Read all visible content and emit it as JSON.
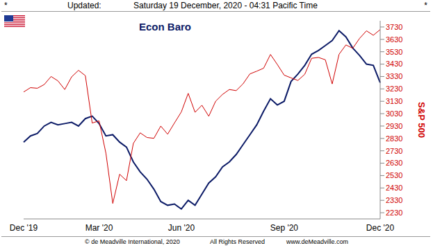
{
  "chart_data": {
    "type": "line",
    "title": "Econ Baro",
    "ylabel": "S&P 500",
    "header": [
      "*",
      "Updated:",
      "Saturday 19 December, 2020 - 04:31 Pacific Time",
      "*"
    ],
    "footer": [
      "© de Meadville International, 2020",
      "All Rights Reserved",
      "www.deMeadville.com"
    ],
    "categories": [
      "Dec '19",
      null,
      null,
      null,
      null,
      null,
      null,
      null,
      null,
      null,
      null,
      "Mar '20",
      null,
      null,
      null,
      null,
      null,
      null,
      null,
      null,
      null,
      null,
      null,
      "Jun '20",
      null,
      null,
      null,
      null,
      null,
      null,
      null,
      null,
      null,
      null,
      null,
      null,
      null,
      null,
      "Sep '20",
      null,
      null,
      null,
      null,
      null,
      null,
      null,
      null,
      null,
      null,
      null,
      null,
      null,
      "Dec '20"
    ],
    "series": [
      {
        "name": "Econ Baro",
        "color": "#0b1a66",
        "values": [
          2800,
          2850,
          2870,
          2930,
          2960,
          2940,
          2950,
          2960,
          2930,
          2990,
          3010,
          2950,
          2850,
          2860,
          2800,
          2760,
          2640,
          2560,
          2500,
          2420,
          2320,
          2290,
          2300,
          2260,
          2330,
          2290,
          2380,
          2470,
          2520,
          2600,
          2640,
          2700,
          2780,
          2860,
          2940,
          3050,
          3150,
          3100,
          3130,
          3290,
          3350,
          3420,
          3510,
          3540,
          3580,
          3620,
          3700,
          3650,
          3560,
          3500,
          3430,
          3420,
          3280
        ]
      },
      {
        "name": "S&P 500",
        "color": "#d00000",
        "values": [
          3205,
          3240,
          3235,
          3265,
          3330,
          3295,
          3225,
          3327,
          3380,
          3337,
          2954,
          2972,
          2711,
          2305,
          2541,
          2489,
          2790,
          2875,
          2837,
          2831,
          2930,
          2864,
          2955,
          3044,
          3194,
          3041,
          3098,
          3009,
          3130,
          3185,
          3225,
          3216,
          3271,
          3351,
          3373,
          3397,
          3508,
          3427,
          3341,
          3319,
          3298,
          3348,
          3477,
          3484,
          3465,
          3270,
          3509,
          3585,
          3558,
          3638,
          3699,
          3663,
          3709
        ]
      }
    ],
    "ylim": [
      2180,
      3780
    ],
    "yticks": [
      2230,
      2330,
      2430,
      2530,
      2630,
      2730,
      2830,
      2930,
      3030,
      3130,
      3230,
      3330,
      3430,
      3530,
      3630,
      3730
    ]
  }
}
